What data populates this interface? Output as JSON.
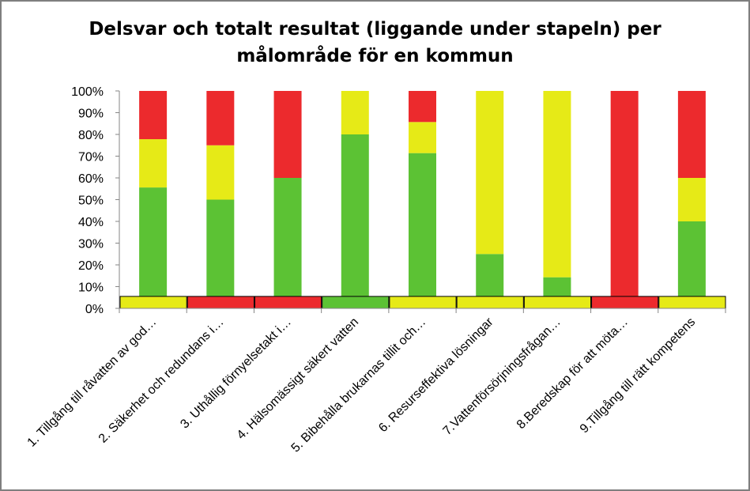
{
  "chart_data": {
    "type": "bar",
    "stacked": true,
    "title_lines": [
      "Delsvar och totalt resultat (liggande under stapeln) per",
      "målområde för en kommun"
    ],
    "xlabel": "",
    "ylabel": "",
    "ylim": [
      0,
      100
    ],
    "y_ticks": [
      "0%",
      "10%",
      "20%",
      "30%",
      "40%",
      "50%",
      "60%",
      "70%",
      "80%",
      "90%",
      "100%"
    ],
    "categories": [
      "1. Tillgång till råvatten av god…",
      "2. Säkerhet och redundans i…",
      "3. Uthållig förnyelsetakt i…",
      "4. Hälsomässigt säkert vatten",
      "5. Bibehålla brukarnas tillit och…",
      "6. Resurseffektiva lösningar",
      "7.Vattenförsörjningsfrågan…",
      "8.Beredskap för att möta…",
      "9.Tillgång till rätt kompetens"
    ],
    "series": [
      {
        "color": "#5cc234",
        "values": [
          55.6,
          50,
          60,
          80,
          71.4,
          25,
          14.3,
          0,
          40
        ]
      },
      {
        "color": "#e6ea17",
        "values": [
          22.2,
          25,
          0,
          20,
          14.3,
          75,
          85.7,
          0,
          20
        ]
      },
      {
        "color": "#ec2a2d",
        "values": [
          22.2,
          25,
          40,
          0,
          14.3,
          0,
          0,
          100,
          40
        ]
      }
    ],
    "total_result_colors": [
      "#e6ea17",
      "#ec2a2d",
      "#ec2a2d",
      "#5cc234",
      "#e6ea17",
      "#e6ea17",
      "#e6ea17",
      "#ec2a2d",
      "#e6ea17"
    ],
    "grid": false,
    "legend": "none"
  }
}
